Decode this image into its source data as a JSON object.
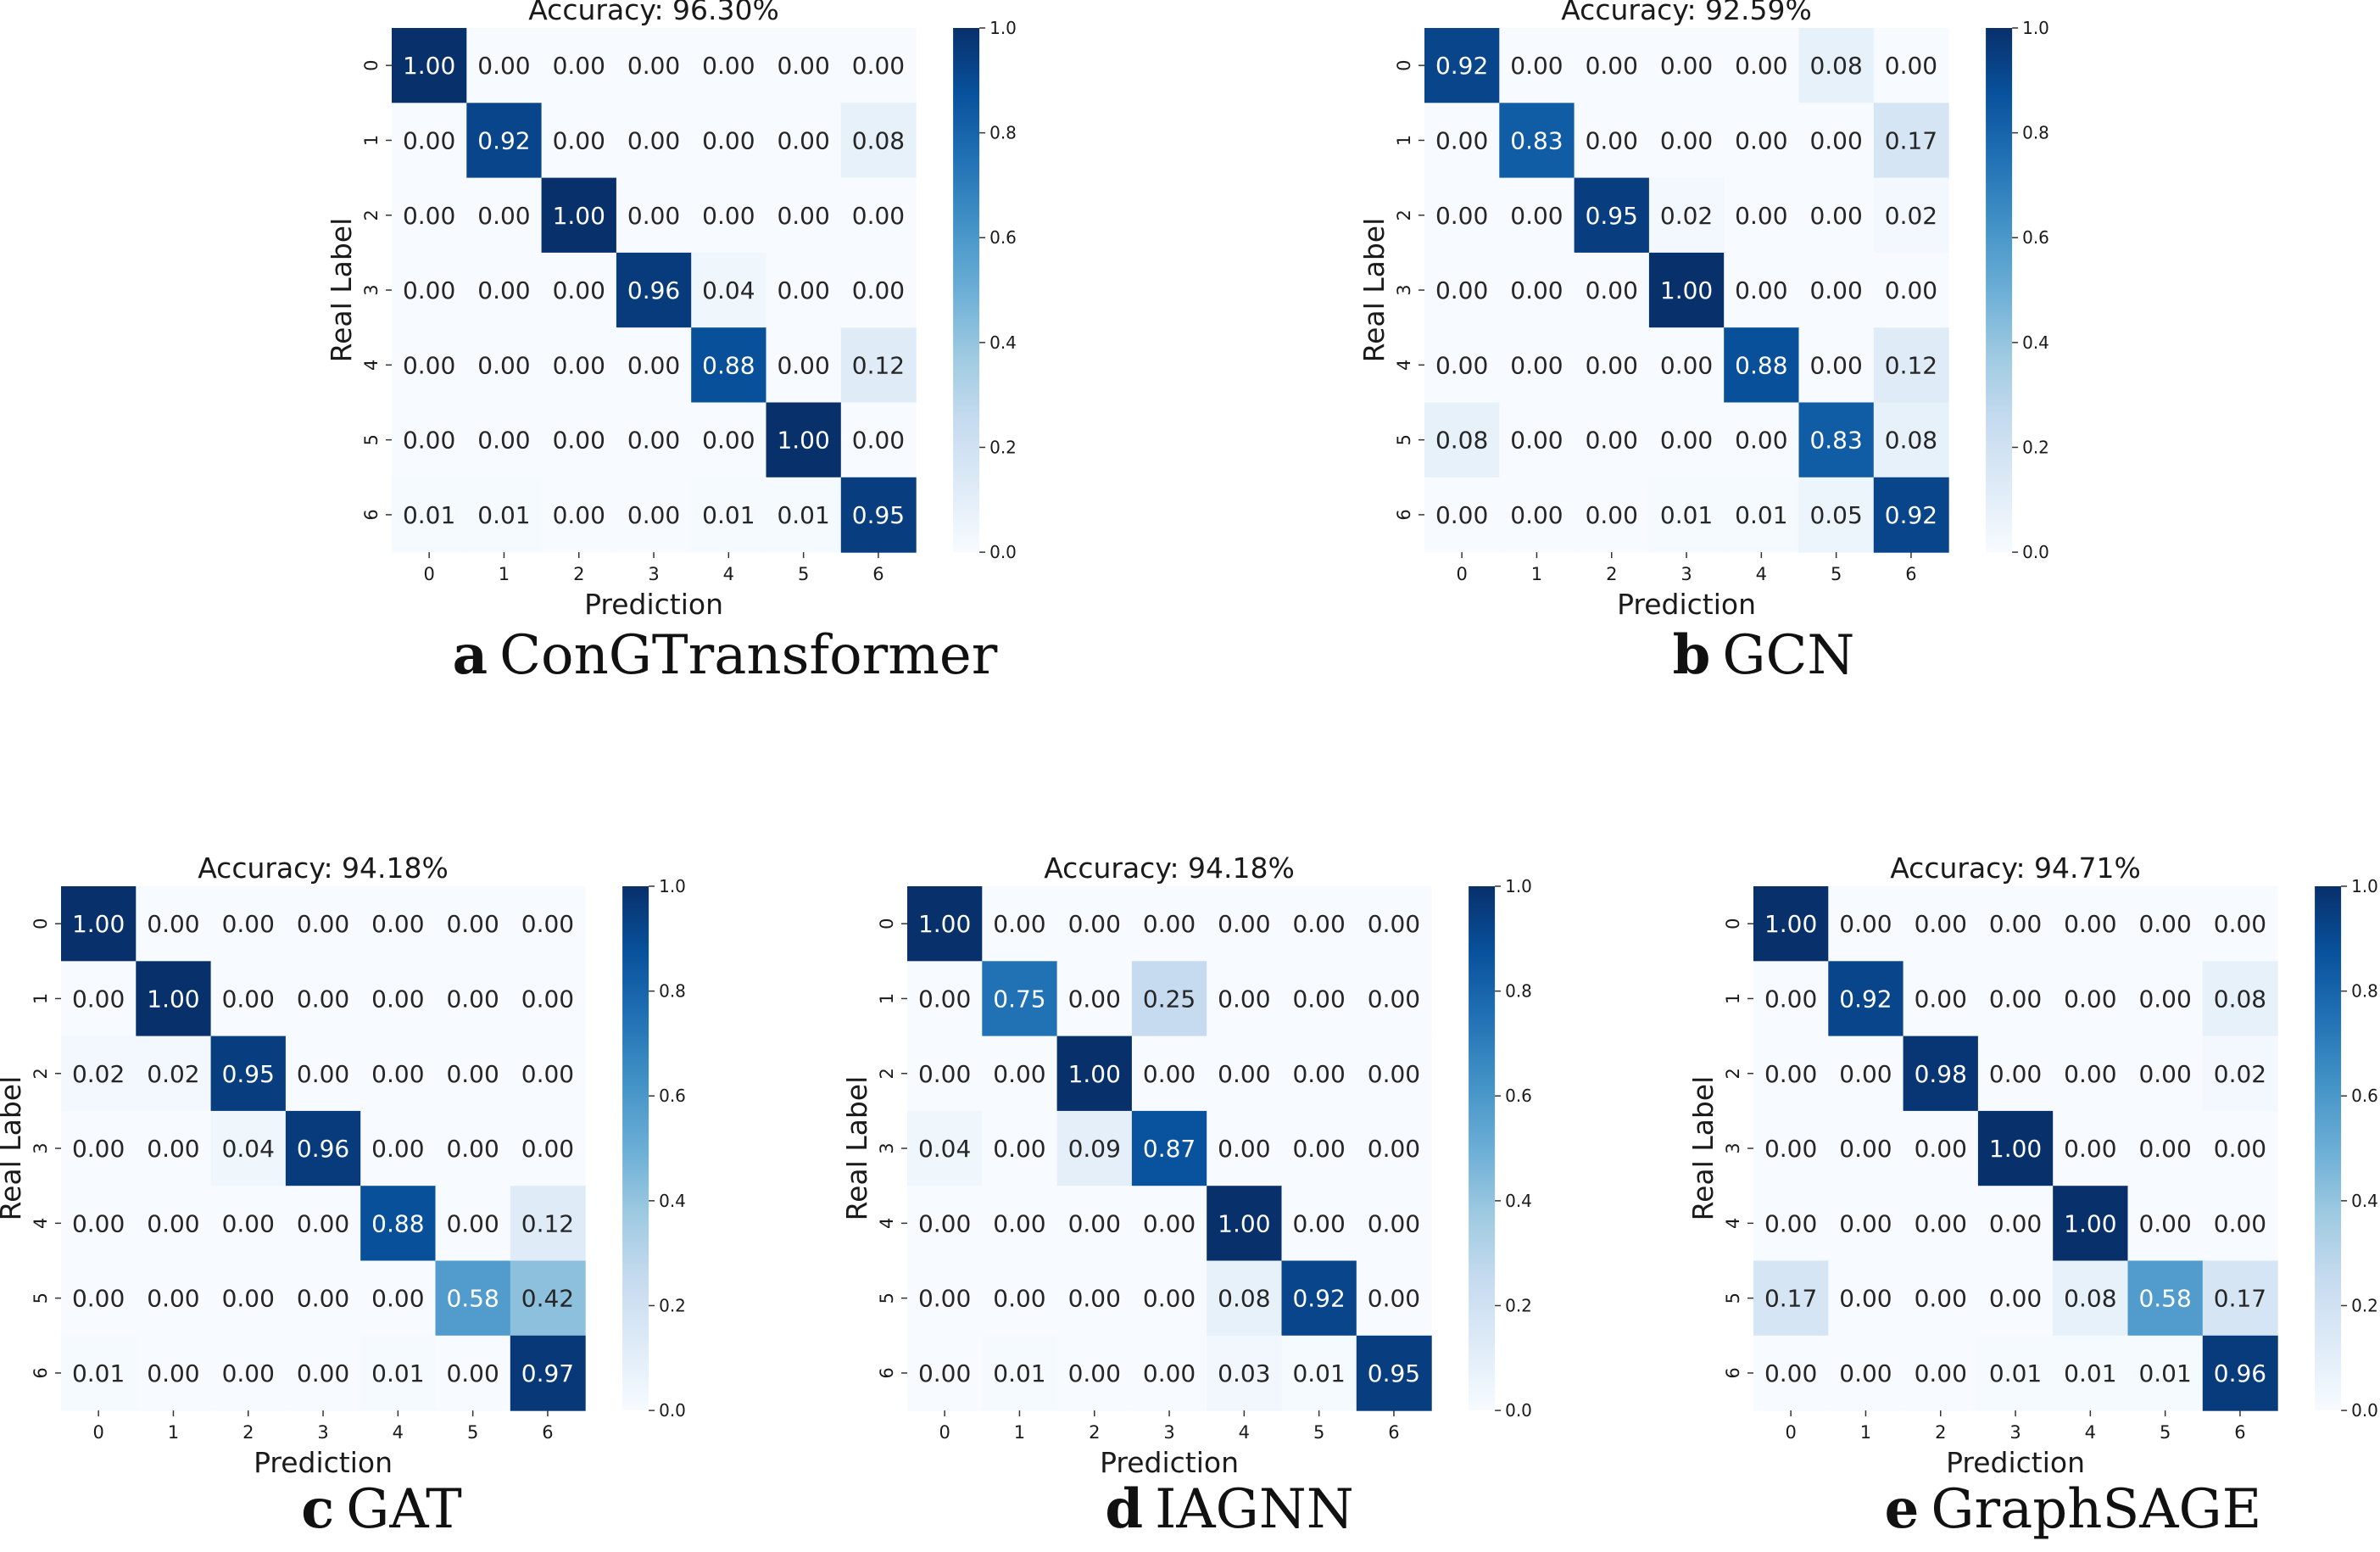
{
  "chart_data": [
    {
      "type": "heatmap",
      "panel_letter": "a",
      "panel_name": "ConGTransformer",
      "title": "Accuracy: 96.30%",
      "xlabel": "Prediction",
      "ylabel": "Real Label",
      "x_ticks": [
        "0",
        "1",
        "2",
        "3",
        "4",
        "5",
        "6"
      ],
      "y_ticks": [
        "0",
        "1",
        "2",
        "3",
        "4",
        "5",
        "6"
      ],
      "colorbar_ticks": [
        "0.0",
        "0.2",
        "0.4",
        "0.6",
        "0.8",
        "1.0"
      ],
      "vmin": 0,
      "vmax": 1,
      "values": [
        [
          1.0,
          0.0,
          0.0,
          0.0,
          0.0,
          0.0,
          0.0
        ],
        [
          0.0,
          0.92,
          0.0,
          0.0,
          0.0,
          0.0,
          0.08
        ],
        [
          0.0,
          0.0,
          1.0,
          0.0,
          0.0,
          0.0,
          0.0
        ],
        [
          0.0,
          0.0,
          0.0,
          0.96,
          0.04,
          0.0,
          0.0
        ],
        [
          0.0,
          0.0,
          0.0,
          0.0,
          0.88,
          0.0,
          0.12
        ],
        [
          0.0,
          0.0,
          0.0,
          0.0,
          0.0,
          1.0,
          0.0
        ],
        [
          0.01,
          0.01,
          0.0,
          0.0,
          0.01,
          0.01,
          0.95
        ]
      ]
    },
    {
      "type": "heatmap",
      "panel_letter": "b",
      "panel_name": "GCN",
      "title": "Accuracy: 92.59%",
      "xlabel": "Prediction",
      "ylabel": "Real Label",
      "x_ticks": [
        "0",
        "1",
        "2",
        "3",
        "4",
        "5",
        "6"
      ],
      "y_ticks": [
        "0",
        "1",
        "2",
        "3",
        "4",
        "5",
        "6"
      ],
      "colorbar_ticks": [
        "0.0",
        "0.2",
        "0.4",
        "0.6",
        "0.8",
        "1.0"
      ],
      "vmin": 0,
      "vmax": 1,
      "values": [
        [
          0.92,
          0.0,
          0.0,
          0.0,
          0.0,
          0.08,
          0.0
        ],
        [
          0.0,
          0.83,
          0.0,
          0.0,
          0.0,
          0.0,
          0.17
        ],
        [
          0.0,
          0.0,
          0.95,
          0.02,
          0.0,
          0.0,
          0.02
        ],
        [
          0.0,
          0.0,
          0.0,
          1.0,
          0.0,
          0.0,
          0.0
        ],
        [
          0.0,
          0.0,
          0.0,
          0.0,
          0.88,
          0.0,
          0.12
        ],
        [
          0.08,
          0.0,
          0.0,
          0.0,
          0.0,
          0.83,
          0.08
        ],
        [
          0.0,
          0.0,
          0.0,
          0.01,
          0.01,
          0.05,
          0.92
        ]
      ]
    },
    {
      "type": "heatmap",
      "panel_letter": "c",
      "panel_name": "GAT",
      "title": "Accuracy: 94.18%",
      "xlabel": "Prediction",
      "ylabel": "Real Label",
      "x_ticks": [
        "0",
        "1",
        "2",
        "3",
        "4",
        "5",
        "6"
      ],
      "y_ticks": [
        "0",
        "1",
        "2",
        "3",
        "4",
        "5",
        "6"
      ],
      "colorbar_ticks": [
        "0.0",
        "0.2",
        "0.4",
        "0.6",
        "0.8",
        "1.0"
      ],
      "vmin": 0,
      "vmax": 1,
      "values": [
        [
          1.0,
          0.0,
          0.0,
          0.0,
          0.0,
          0.0,
          0.0
        ],
        [
          0.0,
          1.0,
          0.0,
          0.0,
          0.0,
          0.0,
          0.0
        ],
        [
          0.02,
          0.02,
          0.95,
          0.0,
          0.0,
          0.0,
          0.0
        ],
        [
          0.0,
          0.0,
          0.04,
          0.96,
          0.0,
          0.0,
          0.0
        ],
        [
          0.0,
          0.0,
          0.0,
          0.0,
          0.88,
          0.0,
          0.12
        ],
        [
          0.0,
          0.0,
          0.0,
          0.0,
          0.0,
          0.58,
          0.42
        ],
        [
          0.01,
          0.0,
          0.0,
          0.0,
          0.01,
          0.0,
          0.97
        ]
      ]
    },
    {
      "type": "heatmap",
      "panel_letter": "d",
      "panel_name": "IAGNN",
      "title": "Accuracy: 94.18%",
      "xlabel": "Prediction",
      "ylabel": "Real Label",
      "x_ticks": [
        "0",
        "1",
        "2",
        "3",
        "4",
        "5",
        "6"
      ],
      "y_ticks": [
        "0",
        "1",
        "2",
        "3",
        "4",
        "5",
        "6"
      ],
      "colorbar_ticks": [
        "0.0",
        "0.2",
        "0.4",
        "0.6",
        "0.8",
        "1.0"
      ],
      "vmin": 0,
      "vmax": 1,
      "values": [
        [
          1.0,
          0.0,
          0.0,
          0.0,
          0.0,
          0.0,
          0.0
        ],
        [
          0.0,
          0.75,
          0.0,
          0.25,
          0.0,
          0.0,
          0.0
        ],
        [
          0.0,
          0.0,
          1.0,
          0.0,
          0.0,
          0.0,
          0.0
        ],
        [
          0.04,
          0.0,
          0.09,
          0.87,
          0.0,
          0.0,
          0.0
        ],
        [
          0.0,
          0.0,
          0.0,
          0.0,
          1.0,
          0.0,
          0.0
        ],
        [
          0.0,
          0.0,
          0.0,
          0.0,
          0.08,
          0.92,
          0.0
        ],
        [
          0.0,
          0.01,
          0.0,
          0.0,
          0.03,
          0.01,
          0.95
        ]
      ]
    },
    {
      "type": "heatmap",
      "panel_letter": "e",
      "panel_name": "GraphSAGE",
      "title": "Accuracy: 94.71%",
      "xlabel": "Prediction",
      "ylabel": "Real Label",
      "x_ticks": [
        "0",
        "1",
        "2",
        "3",
        "4",
        "5",
        "6"
      ],
      "y_ticks": [
        "0",
        "1",
        "2",
        "3",
        "4",
        "5",
        "6"
      ],
      "colorbar_ticks": [
        "0.0",
        "0.2",
        "0.4",
        "0.6",
        "0.8",
        "1.0"
      ],
      "vmin": 0,
      "vmax": 1,
      "values": [
        [
          1.0,
          0.0,
          0.0,
          0.0,
          0.0,
          0.0,
          0.0
        ],
        [
          0.0,
          0.92,
          0.0,
          0.0,
          0.0,
          0.0,
          0.08
        ],
        [
          0.0,
          0.0,
          0.98,
          0.0,
          0.0,
          0.0,
          0.02
        ],
        [
          0.0,
          0.0,
          0.0,
          1.0,
          0.0,
          0.0,
          0.0
        ],
        [
          0.0,
          0.0,
          0.0,
          0.0,
          1.0,
          0.0,
          0.0
        ],
        [
          0.17,
          0.0,
          0.0,
          0.0,
          0.08,
          0.58,
          0.17
        ],
        [
          0.0,
          0.0,
          0.0,
          0.01,
          0.01,
          0.01,
          0.96
        ]
      ]
    }
  ]
}
